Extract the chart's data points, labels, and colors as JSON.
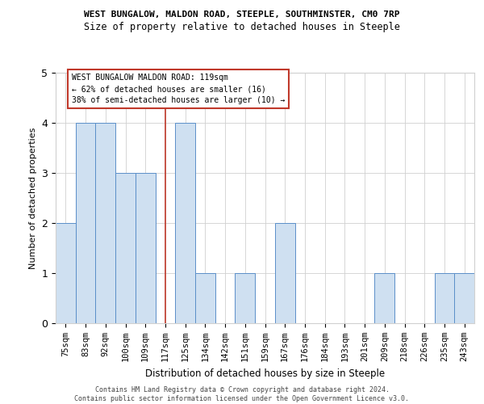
{
  "title1": "WEST BUNGALOW, MALDON ROAD, STEEPLE, SOUTHMINSTER, CM0 7RP",
  "title2": "Size of property relative to detached houses in Steeple",
  "xlabel": "Distribution of detached houses by size in Steeple",
  "ylabel": "Number of detached properties",
  "categories": [
    "75sqm",
    "83sqm",
    "92sqm",
    "100sqm",
    "109sqm",
    "117sqm",
    "125sqm",
    "134sqm",
    "142sqm",
    "151sqm",
    "159sqm",
    "167sqm",
    "176sqm",
    "184sqm",
    "193sqm",
    "201sqm",
    "209sqm",
    "218sqm",
    "226sqm",
    "235sqm",
    "243sqm"
  ],
  "values": [
    2,
    4,
    4,
    3,
    3,
    0,
    4,
    1,
    0,
    1,
    0,
    2,
    0,
    0,
    0,
    0,
    1,
    0,
    0,
    1,
    1
  ],
  "highlight_index": 5,
  "bar_color": "#cfe0f1",
  "bar_edge_color": "#5b8fc9",
  "highlight_line_color": "#c0392b",
  "annotation_text": "WEST BUNGALOW MALDON ROAD: 119sqm\n← 62% of detached houses are smaller (16)\n38% of semi-detached houses are larger (10) →",
  "annotation_box_color": "#ffffff",
  "annotation_box_edge": "#c0392b",
  "footer": "Contains HM Land Registry data © Crown copyright and database right 2024.\nContains public sector information licensed under the Open Government Licence v3.0.",
  "ylim": [
    0,
    5
  ],
  "yticks": [
    0,
    1,
    2,
    3,
    4,
    5
  ],
  "grid_color": "#d0d0d0",
  "background_color": "#ffffff",
  "title1_fontsize": 8.0,
  "title2_fontsize": 8.5,
  "ylabel_fontsize": 8.0,
  "xlabel_fontsize": 8.5,
  "tick_fontsize": 7.5,
  "footer_fontsize": 6.0
}
